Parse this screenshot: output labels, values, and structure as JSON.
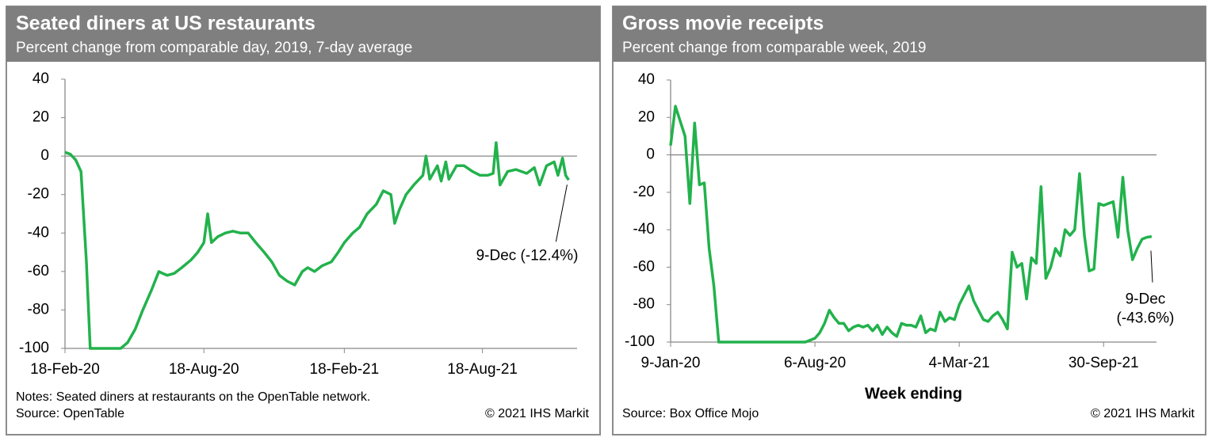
{
  "chart_data": [
    {
      "type": "line",
      "title": "Seated diners at US restaurants",
      "subtitle": "Percent change from comparable day, 2019, 7-day average",
      "notes": [
        "Notes: Seated diners at restaurants on the OpenTable network.",
        "Source: OpenTable"
      ],
      "copyright": "© 2021 IHS Markit",
      "color": "#22b24c",
      "x": [
        "2020-02-18",
        "2020-02-25",
        "2020-03-03",
        "2020-03-10",
        "2020-03-17",
        "2020-03-22",
        "2020-04-01",
        "2020-04-15",
        "2020-05-01",
        "2020-05-10",
        "2020-05-20",
        "2020-05-30",
        "2020-06-10",
        "2020-06-20",
        "2020-06-25",
        "2020-07-01",
        "2020-07-10",
        "2020-07-20",
        "2020-08-01",
        "2020-08-10",
        "2020-08-18",
        "2020-08-23",
        "2020-08-28",
        "2020-09-05",
        "2020-09-15",
        "2020-09-25",
        "2020-10-05",
        "2020-10-15",
        "2020-10-25",
        "2020-11-05",
        "2020-11-15",
        "2020-11-25",
        "2020-12-05",
        "2020-12-15",
        "2020-12-25",
        "2021-01-01",
        "2021-01-10",
        "2021-01-20",
        "2021-02-01",
        "2021-02-10",
        "2021-02-18",
        "2021-03-01",
        "2021-03-10",
        "2021-03-20",
        "2021-04-01",
        "2021-04-10",
        "2021-04-20",
        "2021-04-25",
        "2021-05-01",
        "2021-05-10",
        "2021-05-20",
        "2021-06-01",
        "2021-06-05",
        "2021-06-10",
        "2021-06-20",
        "2021-06-25",
        "2021-07-01",
        "2021-07-05",
        "2021-07-15",
        "2021-07-25",
        "2021-08-05",
        "2021-08-15",
        "2021-08-25",
        "2021-09-01",
        "2021-09-05",
        "2021-09-10",
        "2021-09-20",
        "2021-10-01",
        "2021-10-15",
        "2021-10-25",
        "2021-11-01",
        "2021-11-10",
        "2021-11-20",
        "2021-11-25",
        "2021-12-01",
        "2021-12-05",
        "2021-12-09"
      ],
      "values": [
        2,
        1,
        -2,
        -8,
        -55,
        -100,
        -100,
        -100,
        -100,
        -97,
        -90,
        -80,
        -70,
        -60,
        -61,
        -62,
        -61,
        -58,
        -54,
        -50,
        -45,
        -30,
        -45,
        -42,
        -40,
        -39,
        -40,
        -40,
        -45,
        -50,
        -55,
        -62,
        -65,
        -67,
        -60,
        -58,
        -60,
        -57,
        -55,
        -50,
        -45,
        -40,
        -37,
        -30,
        -25,
        -18,
        -20,
        -35,
        -28,
        -20,
        -15,
        -10,
        0,
        -12,
        -5,
        -13,
        -3,
        -12,
        -5,
        -5,
        -8,
        -10,
        -10,
        -9,
        7,
        -15,
        -8,
        -7,
        -9,
        -6,
        -15,
        -5,
        -3,
        -10,
        -1,
        -10,
        -12.4
      ],
      "xlim": [
        "2020-02-18",
        "2021-12-20"
      ],
      "xticks": [
        {
          "value": "2020-02-18",
          "label": "18-Feb-20"
        },
        {
          "value": "2020-08-18",
          "label": "18-Aug-20"
        },
        {
          "value": "2021-02-18",
          "label": "18-Feb-21"
        },
        {
          "value": "2021-08-18",
          "label": "18-Aug-21"
        }
      ],
      "ylim": [
        -100,
        40
      ],
      "yticks": [
        -100,
        -80,
        -60,
        -40,
        -20,
        0,
        20,
        40
      ],
      "annotation": [
        "9-Dec (-12.4%)"
      ]
    },
    {
      "type": "line",
      "title": "Gross movie receipts",
      "subtitle": "Percent change from comparable week, 2019",
      "x_label": "Week ending",
      "notes": [
        "Source: Box Office Mojo"
      ],
      "copyright": "© 2021 IHS Markit",
      "color": "#22b24c",
      "x": [
        "2020-01-09",
        "2020-01-16",
        "2020-01-23",
        "2020-01-30",
        "2020-02-06",
        "2020-02-13",
        "2020-02-20",
        "2020-02-27",
        "2020-03-05",
        "2020-03-12",
        "2020-03-19",
        "2020-03-26",
        "2020-04-02",
        "2020-04-09",
        "2020-04-16",
        "2020-04-23",
        "2020-04-30",
        "2020-05-07",
        "2020-05-14",
        "2020-05-21",
        "2020-05-28",
        "2020-06-04",
        "2020-06-11",
        "2020-06-18",
        "2020-06-25",
        "2020-07-02",
        "2020-07-09",
        "2020-07-16",
        "2020-07-23",
        "2020-07-30",
        "2020-08-06",
        "2020-08-13",
        "2020-08-20",
        "2020-08-27",
        "2020-09-03",
        "2020-09-10",
        "2020-09-17",
        "2020-09-24",
        "2020-10-01",
        "2020-10-08",
        "2020-10-15",
        "2020-10-22",
        "2020-10-29",
        "2020-11-05",
        "2020-11-12",
        "2020-11-19",
        "2020-11-26",
        "2020-12-03",
        "2020-12-10",
        "2020-12-17",
        "2020-12-24",
        "2020-12-31",
        "2021-01-07",
        "2021-01-14",
        "2021-01-21",
        "2021-01-28",
        "2021-02-04",
        "2021-02-11",
        "2021-02-18",
        "2021-02-25",
        "2021-03-04",
        "2021-03-11",
        "2021-03-18",
        "2021-03-25",
        "2021-04-01",
        "2021-04-08",
        "2021-04-15",
        "2021-04-22",
        "2021-04-29",
        "2021-05-06",
        "2021-05-13",
        "2021-05-20",
        "2021-05-27",
        "2021-06-03",
        "2021-06-10",
        "2021-06-17",
        "2021-06-24",
        "2021-07-01",
        "2021-07-08",
        "2021-07-15",
        "2021-07-22",
        "2021-07-29",
        "2021-08-05",
        "2021-08-12",
        "2021-08-19",
        "2021-08-26",
        "2021-09-02",
        "2021-09-09",
        "2021-09-16",
        "2021-09-23",
        "2021-09-30",
        "2021-10-07",
        "2021-10-14",
        "2021-10-21",
        "2021-10-28",
        "2021-11-04",
        "2021-11-11",
        "2021-11-18",
        "2021-11-25",
        "2021-12-02",
        "2021-12-09"
      ],
      "values": [
        5,
        26,
        18,
        10,
        -26,
        17,
        -16,
        -15,
        -50,
        -70,
        -100,
        -100,
        -100,
        -100,
        -100,
        -100,
        -100,
        -100,
        -100,
        -100,
        -100,
        -100,
        -100,
        -100,
        -100,
        -100,
        -100,
        -100,
        -100,
        -99,
        -98,
        -95,
        -90,
        -83,
        -87,
        -90,
        -90,
        -94,
        -92,
        -91,
        -92,
        -91,
        -94,
        -91,
        -96,
        -92,
        -95,
        -97,
        -90,
        -91,
        -91,
        -92,
        -86,
        -95,
        -93,
        -94,
        -84,
        -89,
        -87,
        -88,
        -80,
        -75,
        -70,
        -78,
        -83,
        -88,
        -89,
        -86,
        -84,
        -88,
        -93,
        -52,
        -60,
        -58,
        -77,
        -55,
        -58,
        -17,
        -66,
        -60,
        -50,
        -54,
        -40,
        -43,
        -40,
        -10,
        -43,
        -62,
        -61,
        -26,
        -27,
        -26,
        -25,
        -44,
        -12,
        -40,
        -56,
        -50,
        -45,
        -44,
        -43.6
      ],
      "xlim": [
        "2020-01-09",
        "2021-12-16"
      ],
      "xticks": [
        {
          "value": "2020-01-09",
          "label": "9-Jan-20"
        },
        {
          "value": "2020-08-06",
          "label": "6-Aug-20"
        },
        {
          "value": "2021-03-04",
          "label": "4-Mar-21"
        },
        {
          "value": "2021-09-30",
          "label": "30-Sep-21"
        }
      ],
      "ylim": [
        -100,
        40
      ],
      "yticks": [
        -100,
        -80,
        -60,
        -40,
        -20,
        0,
        20,
        40
      ],
      "annotation": [
        "9-Dec",
        "(-43.6%)"
      ]
    }
  ]
}
